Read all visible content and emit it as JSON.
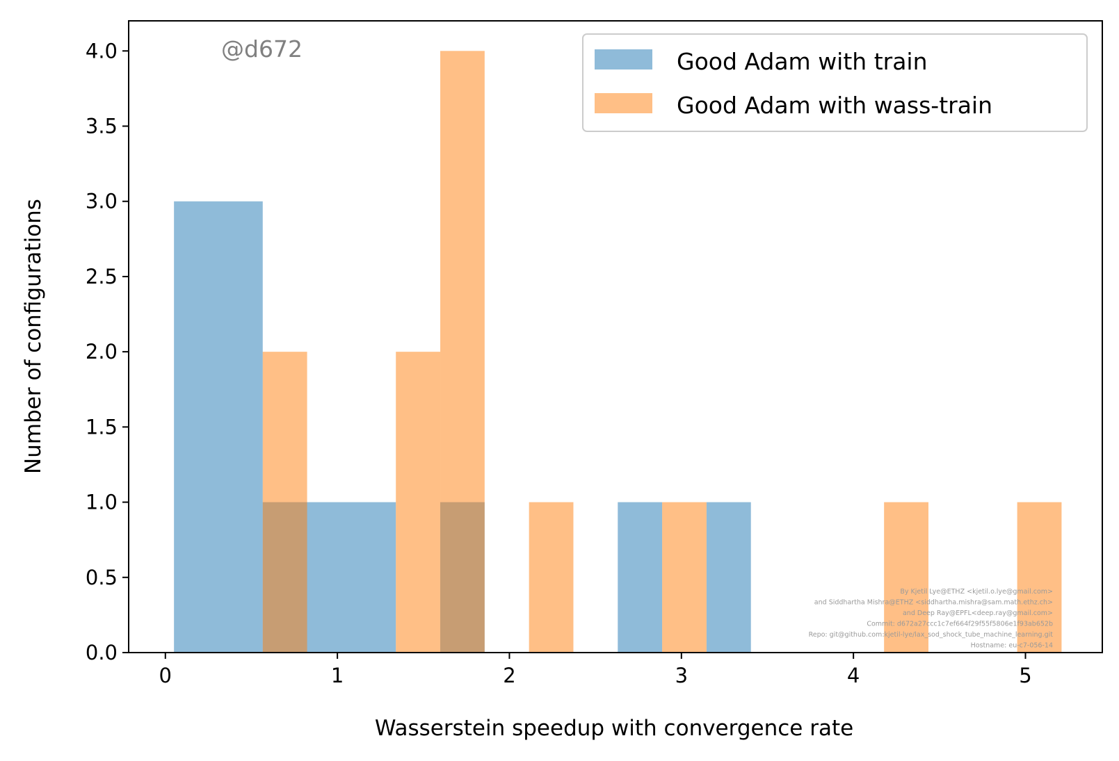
{
  "chart_data": {
    "type": "bar",
    "xlabel": "Wasserstein speedup with convergence rate",
    "ylabel": "Number of configurations",
    "xlim": [
      -0.2134,
      5.4468
    ],
    "ylim": [
      0,
      4.2
    ],
    "xticks": [
      0,
      1,
      2,
      3,
      4,
      5
    ],
    "xtick_labels": [
      "0",
      "1",
      "2",
      "3",
      "4",
      "5"
    ],
    "yticks": [
      0,
      0.5,
      1,
      1.5,
      2,
      2.5,
      3,
      3.5,
      4
    ],
    "ytick_labels": [
      "0.0",
      "0.5",
      "1.0",
      "1.5",
      "2.0",
      "2.5",
      "3.0",
      "3.5",
      "4.0"
    ],
    "grid": false,
    "legend_position": "top-right",
    "annotation": "@d672",
    "credits": [
      "By Kjetil Lye@ETHZ <kjetil.o.lye@gmail.com>",
      "and Siddhartha Mishra@ETHZ <siddhartha.mishra@sam.math.ethz.ch>",
      "and Deep Ray@EPFL<deep.ray@gmail.com>",
      "Commit: d672a27ccc1c7ef664f29f55f5806e1f93ab652b",
      "Repo: git@github.com:kjetil-lye/lax_sod_shock_tube_machine_learning.git",
      "Hostname: eu-c7-056-14"
    ],
    "series": [
      {
        "name": "Good Adam with train",
        "color": "#1f77b4",
        "opacity": 0.5,
        "bins": [
          {
            "x0": 0.05,
            "x1": 0.566,
            "value": 3
          },
          {
            "x0": 0.566,
            "x1": 1.082,
            "value": 1
          },
          {
            "x0": 1.082,
            "x1": 1.598,
            "value": 0
          },
          {
            "x0": 1.598,
            "x1": 2.114,
            "value": 0
          },
          {
            "x0": 2.114,
            "x1": 2.63,
            "value": 0
          },
          {
            "x0": 2.63,
            "x1": 3.146,
            "value": 1
          },
          {
            "x0": 3.146,
            "x1": 3.662,
            "value": 0
          },
          {
            "x0": 3.662,
            "x1": 4.178,
            "value": 0
          },
          {
            "x0": 4.178,
            "x1": 4.694,
            "value": 0
          },
          {
            "x0": 4.694,
            "x1": 5.21,
            "value": 0
          }
        ],
        "bins_extra": [
          {
            "x0": 0.05,
            "x1": 0.566,
            "value": 3
          },
          {
            "x0": 0.566,
            "x1": 1.34,
            "value": 1
          },
          {
            "x0": 1.598,
            "x1": 1.856,
            "value": 1
          },
          {
            "x0": 2.63,
            "x1": 2.888,
            "value": 1
          },
          {
            "x0": 3.146,
            "x1": 3.404,
            "value": 1
          }
        ]
      },
      {
        "name": "Good Adam with wass-train",
        "color": "#ff7f0e",
        "opacity": 0.5,
        "bins": [
          {
            "x0": 0.566,
            "x1": 0.824,
            "value": 2
          },
          {
            "x0": 1.34,
            "x1": 1.598,
            "value": 2
          },
          {
            "x0": 1.598,
            "x1": 1.856,
            "value": 4
          },
          {
            "x0": 2.114,
            "x1": 2.372,
            "value": 1
          },
          {
            "x0": 2.888,
            "x1": 3.146,
            "value": 1
          },
          {
            "x0": 4.178,
            "x1": 4.436,
            "value": 1
          },
          {
            "x0": 4.952,
            "x1": 5.21,
            "value": 1
          }
        ]
      }
    ]
  }
}
